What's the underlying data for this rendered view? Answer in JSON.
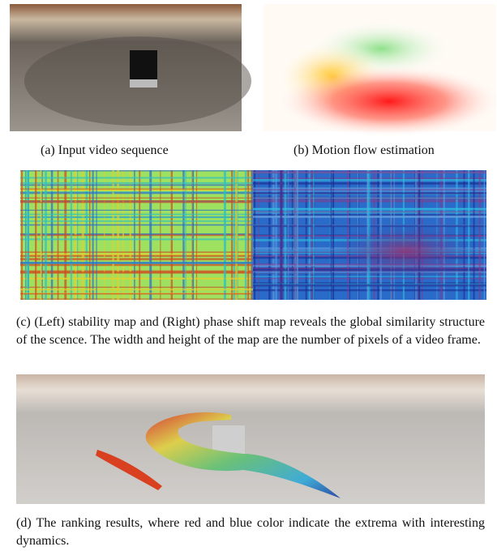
{
  "figure": {
    "panels": [
      {
        "caption": "(a) Input video sequence"
      },
      {
        "caption": "(b) Motion flow estimation"
      },
      {
        "caption": "(c) (Left) stability map and (Right) phase shift map reveals the global similarity structure of the scence. The width and height of the map are the number of pixels of a video frame."
      },
      {
        "caption": "(d) The ranking results, where red and blue color indicate the extrema with interesting dynamics."
      }
    ]
  }
}
